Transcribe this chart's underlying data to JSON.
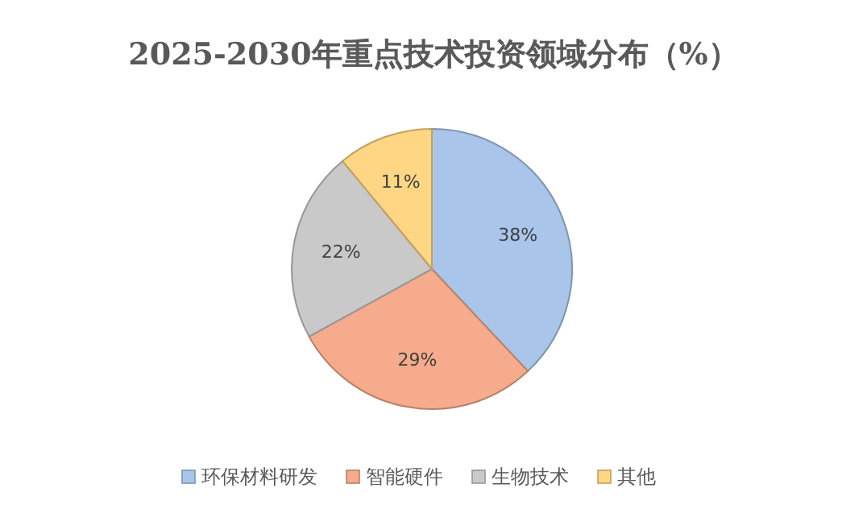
{
  "chart_data": {
    "type": "pie",
    "title": "2025-2030年重点技术投资领域分布（%）",
    "categories": [
      "环保材料研发",
      "智能硬件",
      "生物技术",
      "其他"
    ],
    "values": [
      38,
      29,
      22,
      11
    ],
    "colors": [
      "#a9c5ea",
      "#f5ab8c",
      "#c9c9c9",
      "#ffd683"
    ],
    "value_labels": [
      "38%",
      "29%",
      "22%",
      "11%"
    ],
    "legend": "bottom"
  }
}
